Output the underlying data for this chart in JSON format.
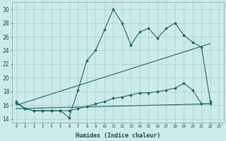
{
  "xlabel": "Humidex (Indice chaleur)",
  "bg_color": "#cdeaea",
  "grid_color": "#aacccc",
  "line_color": "#1a6b6b",
  "xlim": [
    -0.5,
    23.5
  ],
  "ylim": [
    13.5,
    31.0
  ],
  "xticks": [
    0,
    1,
    2,
    3,
    4,
    5,
    6,
    7,
    8,
    9,
    10,
    11,
    12,
    13,
    14,
    15,
    16,
    17,
    18,
    19,
    20,
    21,
    22,
    23
  ],
  "yticks": [
    14,
    16,
    18,
    20,
    22,
    24,
    26,
    28,
    30
  ],
  "line1_x": [
    0,
    1,
    2,
    3,
    4,
    5,
    6,
    7,
    8,
    9,
    10,
    11,
    12,
    13,
    14,
    15,
    16,
    17,
    18,
    19,
    20,
    21,
    22
  ],
  "line1_y": [
    16.5,
    15.5,
    15.2,
    15.2,
    15.2,
    15.2,
    14.2,
    18.2,
    22.5,
    24.0,
    27.0,
    30.0,
    28.0,
    24.8,
    26.7,
    27.2,
    25.8,
    27.2,
    28.0,
    26.2,
    25.2,
    24.5,
    16.5
  ],
  "line2_x": [
    0,
    22
  ],
  "line2_y": [
    16.0,
    25.0
  ],
  "line3_x": [
    0,
    22
  ],
  "line3_y": [
    15.5,
    16.2
  ],
  "line4_x": [
    0,
    1,
    2,
    3,
    4,
    5,
    6,
    7,
    8,
    9,
    10,
    11,
    12,
    13,
    14,
    15,
    16,
    17,
    18,
    19,
    20,
    21,
    22
  ],
  "line4_y": [
    16.3,
    15.5,
    15.2,
    15.2,
    15.2,
    15.2,
    15.2,
    15.5,
    15.8,
    16.2,
    16.5,
    17.0,
    17.2,
    17.5,
    17.8,
    17.8,
    18.0,
    18.2,
    18.5,
    19.2,
    18.2,
    16.2,
    16.2
  ]
}
